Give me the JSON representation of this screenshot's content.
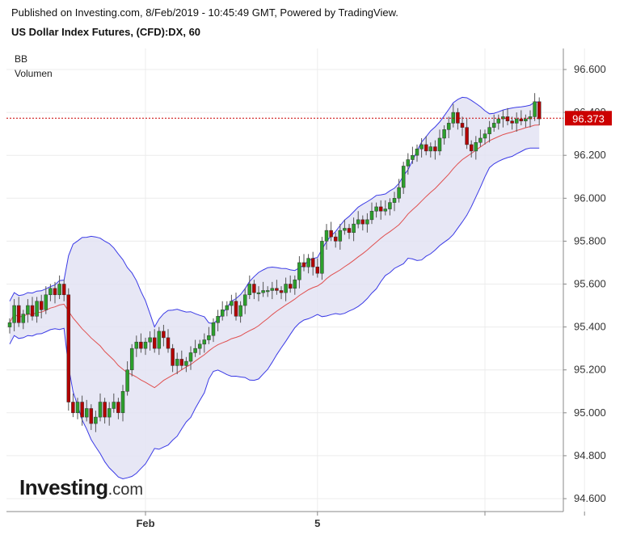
{
  "header": {
    "published": "Published on Investing.com, 8/Feb/2019 - 10:45:49 GMT, Powered by TradingView.",
    "symbol": "US Dollar Index Futures, (CFD):DX, 60"
  },
  "indicators": [
    "BB",
    "Volumen"
  ],
  "logo": {
    "brand": "Investing",
    "suffix": ".com"
  },
  "colors": {
    "up": "#2ca02c",
    "down": "#b30000",
    "band": "#3a3ae6",
    "band_fill": "#e3e3f3",
    "basis": "#e05050",
    "price_line": "#cc0000"
  },
  "chart_data": {
    "type": "candlestick",
    "title": "US Dollar Index Futures, (CFD):DX, 60",
    "ylim": [
      94.55,
      96.75
    ],
    "y_ticks": [
      "96.600",
      "96.400",
      "96.200",
      "96.000",
      "95.800",
      "95.600",
      "95.400",
      "95.200",
      "95.000",
      "94.800",
      "94.600"
    ],
    "y_tick_values": [
      96.6,
      96.4,
      96.2,
      96.0,
      95.8,
      95.6,
      95.4,
      95.2,
      95.0,
      94.8,
      94.6
    ],
    "x_labels": [
      {
        "label": "Feb",
        "index": 30
      },
      {
        "label": "5",
        "index": 68
      },
      {
        "label": "",
        "index": 105
      },
      {
        "label": "",
        "index": 127
      }
    ],
    "current_price": 96.373,
    "current_price_label": "96.373",
    "closes": [
      95.42,
      95.5,
      95.42,
      95.46,
      95.5,
      95.45,
      95.52,
      95.48,
      95.55,
      95.58,
      95.55,
      95.6,
      95.55,
      95.05,
      95.0,
      95.05,
      94.98,
      95.02,
      94.95,
      94.98,
      95.05,
      94.98,
      95.02,
      95.05,
      95.0,
      95.1,
      95.2,
      95.3,
      95.33,
      95.3,
      95.33,
      95.35,
      95.3,
      95.38,
      95.35,
      95.3,
      95.22,
      95.25,
      95.22,
      95.24,
      95.28,
      95.3,
      95.32,
      95.34,
      95.36,
      95.42,
      95.45,
      95.48,
      95.5,
      95.52,
      95.45,
      95.5,
      95.55,
      95.6,
      95.56,
      95.56,
      95.57,
      95.57,
      95.58,
      95.57,
      95.56,
      95.6,
      95.58,
      95.62,
      95.7,
      95.68,
      95.72,
      95.68,
      95.65,
      95.8,
      95.85,
      95.82,
      95.8,
      95.85,
      95.86,
      95.84,
      95.88,
      95.9,
      95.88,
      95.9,
      95.94,
      95.96,
      95.94,
      95.95,
      95.98,
      96.0,
      96.05,
      96.15,
      96.18,
      96.2,
      96.23,
      96.25,
      96.22,
      96.24,
      96.22,
      96.28,
      96.32,
      96.35,
      96.4,
      96.35,
      96.33,
      96.25,
      96.22,
      96.26,
      96.28,
      96.3,
      96.33,
      96.35,
      96.37,
      96.38,
      96.36,
      96.35,
      96.37,
      96.36,
      96.37,
      96.38,
      96.45,
      96.37
    ]
  }
}
